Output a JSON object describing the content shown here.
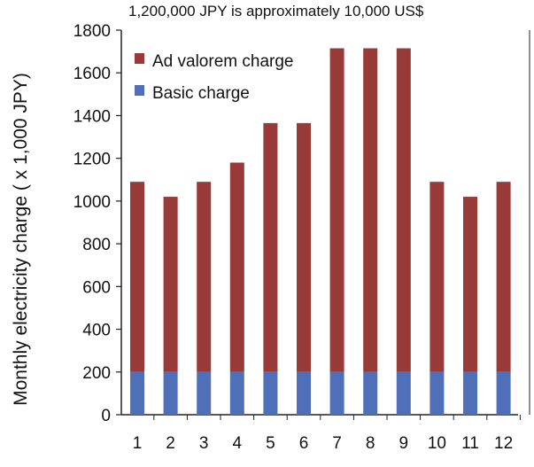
{
  "chart_data": {
    "type": "bar",
    "stacked": true,
    "title": "1,200,000 JPY is approximately 10,000 US$",
    "xlabel": "",
    "ylabel": "Monthly electricity charge ( x 1,000 JPY)",
    "ylim": [
      0,
      1800
    ],
    "yticks": [
      0,
      200,
      400,
      600,
      800,
      1000,
      1200,
      1400,
      1600,
      1800
    ],
    "grid": false,
    "legend_position": "top-left",
    "categories": [
      "1",
      "2",
      "3",
      "4",
      "5",
      "6",
      "7",
      "8",
      "9",
      "10",
      "11",
      "12"
    ],
    "series": [
      {
        "name": "Basic charge",
        "color": "#4f6fb8",
        "values": [
          200,
          200,
          200,
          200,
          200,
          200,
          200,
          200,
          200,
          200,
          200,
          200
        ]
      },
      {
        "name": "Ad valorem charge",
        "color": "#983a37",
        "values": [
          890,
          820,
          890,
          980,
          1165,
          1165,
          1515,
          1515,
          1515,
          890,
          820,
          890
        ]
      }
    ]
  }
}
